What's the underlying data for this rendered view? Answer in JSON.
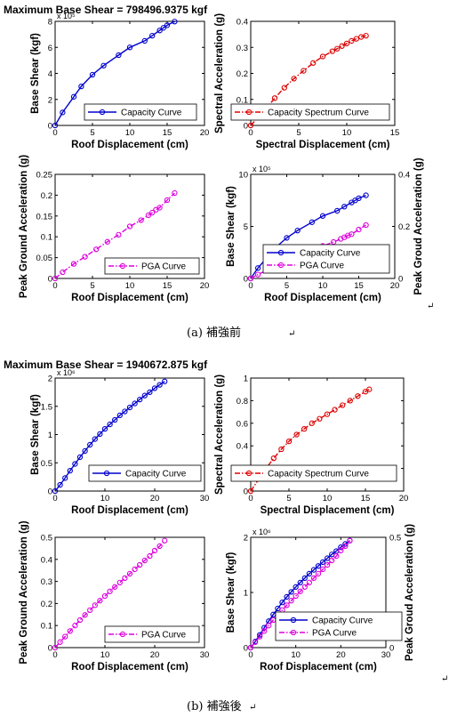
{
  "figure": {
    "caption_a": "(a) 補強前",
    "caption_b": "(b) 補強後",
    "max_shear_a": "Maximum Base Shear = 798496.9375 kgf",
    "max_shear_b": "Maximum Base Shear = 1940672.875 kgf",
    "return_mark": "↵"
  },
  "colors": {
    "capacity": "#0000cc",
    "spectrum": "#dd0000",
    "pga": "#dd00dd"
  },
  "chart_data": [
    {
      "id": "a1",
      "type": "line",
      "xlabel": "Roof Displacement (cm)",
      "ylabel": "Base Shear (kgf)",
      "xlim": [
        0,
        20
      ],
      "ylim": [
        0,
        800000
      ],
      "xticks": [
        0,
        5,
        10,
        15,
        20
      ],
      "yticks": [
        0,
        200000,
        400000,
        600000,
        800000
      ],
      "ytick_labels": [
        "0",
        "2",
        "4",
        "6",
        "8"
      ],
      "exponent": "x 10⁵",
      "legend": "top-right inside",
      "series": [
        {
          "name": "Capacity Curve",
          "color": "#0000cc",
          "style": "solid",
          "x": [
            0,
            1,
            2.5,
            3.5,
            5,
            6.5,
            8.5,
            10,
            12,
            13,
            14,
            14.5,
            15,
            16
          ],
          "y": [
            0,
            100000,
            220000,
            300000,
            390000,
            460000,
            540000,
            600000,
            650000,
            690000,
            730000,
            750000,
            770000,
            798497
          ]
        }
      ]
    },
    {
      "id": "a2",
      "type": "line",
      "xlabel": "Spectral Displacement (cm)",
      "ylabel": "Spectral Acceleration (g)",
      "xlim": [
        0,
        15
      ],
      "ylim": [
        0,
        0.4
      ],
      "xticks": [
        0,
        5,
        10,
        15
      ],
      "yticks": [
        0,
        0.1,
        0.2,
        0.3,
        0.4
      ],
      "ytick_labels": [
        "0",
        "0.1",
        "0.2",
        "0.3",
        "0.4"
      ],
      "legend": "bottom inside",
      "series": [
        {
          "name": "Capacity Spectrum Curve",
          "color": "#dd0000",
          "style": "dashdot",
          "x": [
            0,
            1.5,
            2.5,
            3.5,
            4.5,
            5.5,
            6.5,
            7.5,
            8.5,
            9,
            9.5,
            10,
            10.5,
            11,
            11.5,
            12
          ],
          "y": [
            0,
            0.06,
            0.105,
            0.145,
            0.18,
            0.21,
            0.24,
            0.265,
            0.285,
            0.295,
            0.305,
            0.315,
            0.325,
            0.333,
            0.34,
            0.345
          ]
        }
      ]
    },
    {
      "id": "a3",
      "type": "line",
      "xlabel": "Roof Displacement (cm)",
      "ylabel": "Peak Ground Acceleration (g)",
      "xlim": [
        0,
        20
      ],
      "ylim": [
        0,
        0.25
      ],
      "xticks": [
        0,
        5,
        10,
        15,
        20
      ],
      "yticks": [
        0,
        0.05,
        0.1,
        0.15,
        0.2,
        0.25
      ],
      "ytick_labels": [
        "0",
        "0.05",
        "0.1",
        "0.15",
        "0.2",
        "0.25"
      ],
      "legend": "bottom-right inside",
      "series": [
        {
          "name": "PGA Curve",
          "color": "#dd00dd",
          "style": "dashdot",
          "x": [
            0,
            1,
            2.5,
            4,
            5.5,
            7,
            8.5,
            10,
            11.5,
            12.5,
            13,
            13.5,
            14,
            15,
            16
          ],
          "y": [
            0,
            0.015,
            0.035,
            0.052,
            0.07,
            0.088,
            0.105,
            0.125,
            0.14,
            0.152,
            0.158,
            0.165,
            0.17,
            0.188,
            0.205
          ]
        }
      ]
    },
    {
      "id": "a4",
      "type": "line",
      "xlabel": "Roof Displacement (cm)",
      "ylabel": "Base Shear (kgf)",
      "y2label": "Peak Groud Acceleration (g)",
      "xlim": [
        0,
        20
      ],
      "ylim": [
        0,
        1000000
      ],
      "y2lim": [
        0,
        0.4
      ],
      "xticks": [
        0,
        5,
        10,
        15,
        20
      ],
      "yticks": [
        0,
        500000,
        1000000
      ],
      "ytick_labels": [
        "0",
        "5",
        "10"
      ],
      "exponent": "x 10⁵",
      "y2ticks": [
        0,
        0.2,
        0.4
      ],
      "y2tick_labels": [
        "0",
        "0.2",
        "0.4"
      ],
      "legend": "bottom-right inside",
      "series": [
        {
          "name": "Capacity Curve",
          "color": "#0000cc",
          "style": "solid",
          "axis": "left",
          "x": [
            0,
            1,
            2.5,
            3.5,
            5,
            6.5,
            8.5,
            10,
            12,
            13,
            14,
            14.5,
            15,
            16
          ],
          "y": [
            0,
            100000,
            220000,
            300000,
            390000,
            460000,
            540000,
            600000,
            650000,
            690000,
            730000,
            750000,
            770000,
            798497
          ]
        },
        {
          "name": "PGA Curve",
          "color": "#dd00dd",
          "style": "dashdot",
          "axis": "right",
          "x": [
            0,
            1,
            2.5,
            4,
            5.5,
            7,
            8.5,
            10,
            11.5,
            12.5,
            13,
            13.5,
            14,
            15,
            16
          ],
          "y": [
            0,
            0.015,
            0.035,
            0.052,
            0.07,
            0.088,
            0.105,
            0.125,
            0.14,
            0.152,
            0.158,
            0.165,
            0.17,
            0.188,
            0.205
          ]
        }
      ]
    },
    {
      "id": "b1",
      "type": "line",
      "xlabel": "Roof Displacement (cm)",
      "ylabel": "Base Shear (kgf)",
      "xlim": [
        0,
        30
      ],
      "ylim": [
        0,
        2000000
      ],
      "xticks": [
        0,
        10,
        20,
        30
      ],
      "yticks": [
        0,
        500000,
        1000000,
        1500000,
        2000000
      ],
      "ytick_labels": [
        "0",
        "0.5",
        "1",
        "1.5",
        "2"
      ],
      "exponent": "x 10⁶",
      "legend": "bottom-right inside",
      "series": [
        {
          "name": "Capacity Curve",
          "color": "#0000cc",
          "style": "solid",
          "x": [
            0,
            1,
            2,
            3,
            4,
            5,
            6,
            7,
            8,
            9,
            10,
            11,
            12,
            13,
            14,
            15,
            16,
            17,
            18,
            19,
            20,
            21,
            22
          ],
          "y": [
            0,
            110000,
            230000,
            360000,
            480000,
            600000,
            710000,
            820000,
            920000,
            1010000,
            1100000,
            1180000,
            1260000,
            1340000,
            1410000,
            1480000,
            1550000,
            1620000,
            1690000,
            1750000,
            1820000,
            1880000,
            1940673
          ]
        }
      ]
    },
    {
      "id": "b2",
      "type": "line",
      "xlabel": "Spectral Displacement (cm)",
      "ylabel": "Spectral Acceleration (g)",
      "xlim": [
        0,
        20
      ],
      "ylim": [
        0,
        1
      ],
      "xticks": [
        0,
        5,
        10,
        15,
        20
      ],
      "yticks": [
        0,
        0.2,
        0.4,
        0.6,
        0.8,
        1
      ],
      "ytick_labels": [
        "0",
        "0.2",
        "0.4",
        "0.6",
        "0.8",
        "1"
      ],
      "legend": "bottom inside",
      "series": [
        {
          "name": "Capacity Spectrum Curve",
          "color": "#dd0000",
          "style": "dashdot",
          "x": [
            0,
            2,
            3,
            4,
            5,
            6,
            7,
            8,
            9,
            10,
            11,
            12,
            13,
            14,
            15,
            15.5
          ],
          "y": [
            0,
            0.2,
            0.29,
            0.37,
            0.44,
            0.5,
            0.55,
            0.6,
            0.64,
            0.68,
            0.72,
            0.76,
            0.8,
            0.84,
            0.88,
            0.9
          ]
        }
      ]
    },
    {
      "id": "b3",
      "type": "line",
      "xlabel": "Roof Displacement (cm)",
      "ylabel": "Peak Ground Acceleration (g)",
      "xlim": [
        0,
        30
      ],
      "ylim": [
        0,
        0.5
      ],
      "xticks": [
        0,
        10,
        20,
        30
      ],
      "yticks": [
        0,
        0.1,
        0.2,
        0.3,
        0.4,
        0.5
      ],
      "ytick_labels": [
        "0",
        "0.1",
        "0.2",
        "0.3",
        "0.4",
        "0.5"
      ],
      "legend": "bottom-right inside",
      "series": [
        {
          "name": "PGA Curve",
          "color": "#dd00dd",
          "style": "dashdot",
          "x": [
            0,
            1,
            2,
            3,
            4,
            5,
            6,
            7,
            8,
            9,
            10,
            11,
            12,
            13,
            14,
            15,
            16,
            17,
            18,
            19,
            20,
            21,
            22
          ],
          "y": [
            0,
            0.025,
            0.05,
            0.075,
            0.1,
            0.125,
            0.148,
            0.17,
            0.192,
            0.213,
            0.234,
            0.255,
            0.275,
            0.295,
            0.315,
            0.335,
            0.355,
            0.375,
            0.395,
            0.415,
            0.44,
            0.46,
            0.485
          ]
        }
      ]
    },
    {
      "id": "b4",
      "type": "line",
      "xlabel": "Roof Displacement (cm)",
      "ylabel": "Base Shear (kgf)",
      "y2label": "Peak Groud Acceleration (g)",
      "xlim": [
        0,
        30
      ],
      "ylim": [
        0,
        2000000
      ],
      "y2lim": [
        0,
        0.5
      ],
      "xticks": [
        0,
        10,
        20,
        30
      ],
      "yticks": [
        0,
        1000000,
        2000000
      ],
      "ytick_labels": [
        "0",
        "1",
        "2"
      ],
      "exponent": "x 10⁶",
      "y2ticks": [
        0,
        0.5
      ],
      "y2tick_labels": [
        "0",
        "0.5"
      ],
      "legend": "bottom-right inside",
      "series": [
        {
          "name": "Capacity Curve",
          "color": "#0000cc",
          "style": "solid",
          "axis": "left",
          "x": [
            0,
            1,
            2,
            3,
            4,
            5,
            6,
            7,
            8,
            9,
            10,
            11,
            12,
            13,
            14,
            15,
            16,
            17,
            18,
            19,
            20,
            21,
            22
          ],
          "y": [
            0,
            110000,
            230000,
            360000,
            480000,
            600000,
            710000,
            820000,
            920000,
            1010000,
            1100000,
            1180000,
            1260000,
            1340000,
            1410000,
            1480000,
            1550000,
            1620000,
            1690000,
            1750000,
            1820000,
            1880000,
            1940673
          ]
        },
        {
          "name": "PGA Curve",
          "color": "#dd00dd",
          "style": "dashdot",
          "axis": "right",
          "x": [
            0,
            1,
            2,
            3,
            4,
            5,
            6,
            7,
            8,
            9,
            10,
            11,
            12,
            13,
            14,
            15,
            16,
            17,
            18,
            19,
            20,
            21,
            22
          ],
          "y": [
            0,
            0.025,
            0.05,
            0.075,
            0.1,
            0.125,
            0.148,
            0.17,
            0.192,
            0.213,
            0.234,
            0.255,
            0.275,
            0.295,
            0.315,
            0.335,
            0.355,
            0.375,
            0.395,
            0.415,
            0.44,
            0.46,
            0.485
          ]
        }
      ]
    }
  ]
}
